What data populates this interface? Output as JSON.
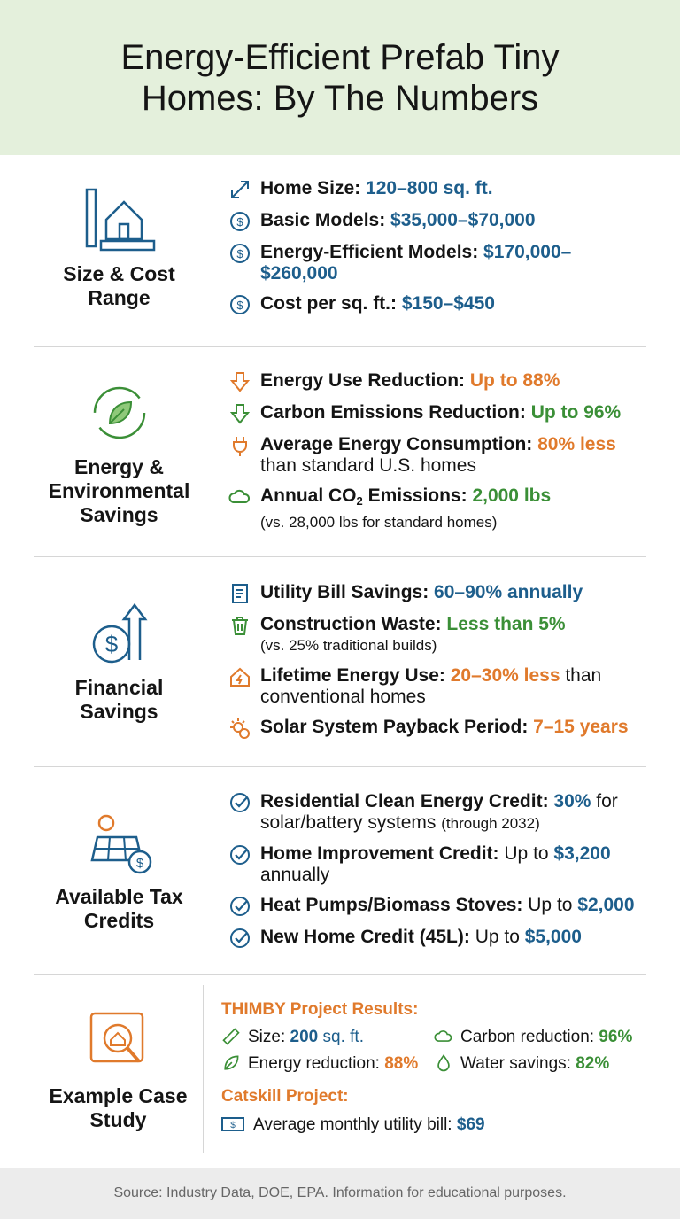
{
  "title": "Energy-Efficient Prefab Tiny Homes: By The Numbers",
  "colors": {
    "blue": "#1d5e8c",
    "orange": "#e07a2c",
    "green": "#3b8f37",
    "header_bg": "#e4f0dc"
  },
  "sections": [
    {
      "title": "Size & Cost Range",
      "icon": "house-ruler-icon",
      "items": [
        {
          "icon": "resize-arrows-icon",
          "parts": [
            {
              "t": "Home Size: ",
              "c": "b"
            },
            {
              "t": "120–800 sq. ft.",
              "c": "blue"
            }
          ]
        },
        {
          "icon": "dollar-icon",
          "parts": [
            {
              "t": "Basic Models: ",
              "c": "b"
            },
            {
              "t": "$35,000–$70,000",
              "c": "blue"
            }
          ]
        },
        {
          "icon": "dollar-icon",
          "parts": [
            {
              "t": "Energy-Efficient Models: ",
              "c": "b"
            },
            {
              "t": "$170,000–$260,000",
              "c": "blue"
            }
          ]
        },
        {
          "icon": "dollar-icon",
          "parts": [
            {
              "t": "Cost per sq. ft.: ",
              "c": "b"
            },
            {
              "t": "$150–$450",
              "c": "blue"
            }
          ]
        }
      ]
    },
    {
      "title": "Energy & Environmental Savings",
      "icon": "recycle-leaf-icon",
      "items": [
        {
          "icon": "arrow-down-orange-icon",
          "parts": [
            {
              "t": "Energy Use Reduction: ",
              "c": "b"
            },
            {
              "t": "Up to 88%",
              "c": "orange"
            }
          ]
        },
        {
          "icon": "arrow-down-green-icon",
          "parts": [
            {
              "t": "Carbon Emissions Reduction: ",
              "c": "b"
            },
            {
              "t": "Up to 96%",
              "c": "green"
            }
          ]
        },
        {
          "icon": "plug-icon",
          "parts": [
            {
              "t": "Average Energy Consumption: ",
              "c": "b"
            },
            {
              "t": "80% less",
              "c": "orange"
            },
            {
              "t": " than standard U.S. homes",
              "c": ""
            }
          ]
        },
        {
          "icon": "cloud-icon",
          "parts": [
            {
              "t": "Annual CO",
              "c": "b"
            },
            {
              "t": "2",
              "c": "b sub2"
            },
            {
              "t": " Emissions: ",
              "c": "b"
            },
            {
              "t": "2,000 lbs",
              "c": "green"
            },
            {
              "t": "(vs. 28,000 lbs for standard homes)",
              "c": "sub"
            }
          ]
        }
      ]
    },
    {
      "title": "Financial Savings",
      "icon": "dollar-growth-icon",
      "items": [
        {
          "icon": "bill-icon",
          "parts": [
            {
              "t": "Utility Bill Savings: ",
              "c": "b"
            },
            {
              "t": "60–90% annually",
              "c": "blue"
            }
          ]
        },
        {
          "icon": "trash-icon",
          "parts": [
            {
              "t": "Construction Waste: ",
              "c": "b"
            },
            {
              "t": "Less than 5%",
              "c": "green"
            },
            {
              "t": "(vs. 25% traditional builds)",
              "c": "sub"
            }
          ]
        },
        {
          "icon": "house-bolt-icon",
          "parts": [
            {
              "t": "Lifetime Energy Use: ",
              "c": "b"
            },
            {
              "t": "20–30% less",
              "c": "orange"
            },
            {
              "t": " than conventional homes",
              "c": ""
            }
          ]
        },
        {
          "icon": "sun-clock-icon",
          "parts": [
            {
              "t": "Solar System Payback Period: ",
              "c": "b"
            },
            {
              "t": "7–15 years",
              "c": "orange"
            }
          ]
        }
      ]
    },
    {
      "title": "Available Tax Credits",
      "icon": "solar-panel-icon",
      "items": [
        {
          "icon": "check-icon",
          "parts": [
            {
              "t": "Residential Clean Energy Credit: ",
              "c": "b"
            },
            {
              "t": "30%",
              "c": "blue"
            },
            {
              "t": " for solar/battery systems ",
              "c": ""
            },
            {
              "t": "(through 2032)",
              "c": "small"
            }
          ]
        },
        {
          "icon": "check-icon",
          "parts": [
            {
              "t": "Home Improvement Credit: ",
              "c": "b"
            },
            {
              "t": "Up to ",
              "c": ""
            },
            {
              "t": "$3,200",
              "c": "blue"
            },
            {
              "t": " annually",
              "c": ""
            }
          ]
        },
        {
          "icon": "check-icon",
          "parts": [
            {
              "t": "Heat Pumps/Biomass Stoves: ",
              "c": "b"
            },
            {
              "t": "Up to ",
              "c": ""
            },
            {
              "t": "$2,000",
              "c": "blue"
            }
          ]
        },
        {
          "icon": "check-icon",
          "parts": [
            {
              "t": "New Home Credit (45L): ",
              "c": "b"
            },
            {
              "t": "Up to ",
              "c": ""
            },
            {
              "t": "$5,000",
              "c": "blue"
            }
          ]
        }
      ]
    }
  ],
  "case_study": {
    "title": "Example Case Study",
    "icon": "blueprint-magnifier-icon",
    "thimby_title": "THIMBY Project Results:",
    "thimby": [
      {
        "icon": "ruler-icon",
        "label": "Size: ",
        "value": "200",
        "value2": " sq. ft.",
        "c": "blue"
      },
      {
        "icon": "cloud-icon",
        "label": "Carbon reduction: ",
        "value": "96%",
        "c": "green"
      },
      {
        "icon": "leaf-icon",
        "label": "Energy reduction: ",
        "value": "88%",
        "c": "orange"
      },
      {
        "icon": "water-drop-icon",
        "label": "Water savings: ",
        "value": "82%",
        "c": "green"
      }
    ],
    "catskill_title": "Catskill Project:",
    "catskill": {
      "icon": "banknote-icon",
      "label": "Average monthly utility bill: ",
      "value": "$69"
    }
  },
  "footer": "Source: Industry Data, DOE, EPA. Information for educational purposes."
}
